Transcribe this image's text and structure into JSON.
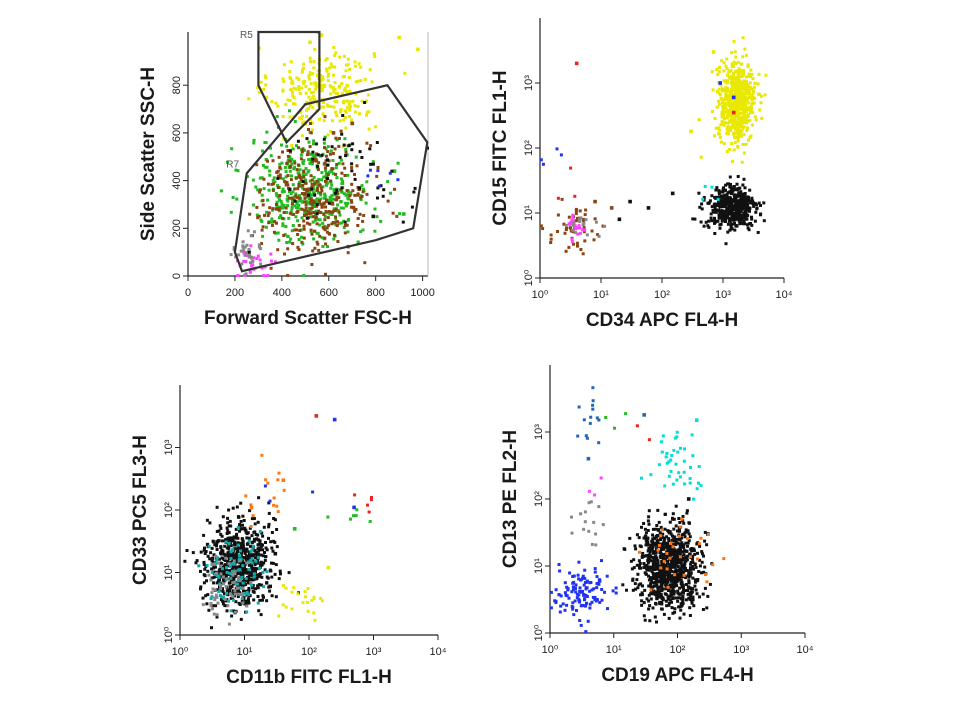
{
  "chart_data": [
    {
      "type": "scatter",
      "panel": "top-left",
      "xlabel": "Forward Scatter FSC-H",
      "ylabel": "Side Scatter SSC-H",
      "xscale": "linear",
      "yscale": "linear",
      "xlim": [
        0,
        1023
      ],
      "ylim": [
        0,
        1023
      ],
      "xticks": [
        "0",
        "200",
        "400",
        "600",
        "800",
        "1000"
      ],
      "yticks": [
        "0",
        "200",
        "400",
        "600",
        "800"
      ],
      "gates": [
        {
          "name": "R5",
          "polygon": [
            [
              300,
              1023
            ],
            [
              300,
              800
            ],
            [
              420,
              560
            ],
            [
              560,
              700
            ],
            [
              560,
              1023
            ]
          ]
        },
        {
          "name": "R7",
          "polygon": [
            [
              200,
              100
            ],
            [
              250,
              430
            ],
            [
              500,
              720
            ],
            [
              850,
              800
            ],
            [
              1020,
              560
            ],
            [
              960,
              200
            ],
            [
              800,
              150
            ],
            [
              230,
              20
            ]
          ]
        }
      ],
      "series": [
        {
          "color": "#e8e800",
          "cluster": {
            "cx": 570,
            "cy": 780,
            "sx": 110,
            "sy": 90,
            "n": 260
          },
          "outliers": [
            [
              520,
              980
            ],
            [
              900,
              1000
            ],
            [
              980,
              950
            ]
          ]
        },
        {
          "color": "#22bb22",
          "cluster": {
            "cx": 520,
            "cy": 360,
            "sx": 130,
            "sy": 110,
            "n": 420
          },
          "outliers": [
            [
              880,
              440
            ],
            [
              920,
              260
            ]
          ]
        },
        {
          "color": "#8b4513",
          "cluster": {
            "cx": 540,
            "cy": 330,
            "sx": 120,
            "sy": 120,
            "n": 320
          },
          "outliers": [
            [
              620,
              600
            ],
            [
              700,
              640
            ]
          ]
        },
        {
          "color": "#111111",
          "cluster": {
            "cx": 650,
            "cy": 420,
            "sx": 150,
            "sy": 130,
            "n": 60
          },
          "outliers": [
            [
              790,
              250
            ],
            [
              260,
              100
            ]
          ]
        },
        {
          "color": "#ff44ff",
          "cluster": {
            "cx": 300,
            "cy": 60,
            "sx": 40,
            "sy": 30,
            "n": 30
          },
          "outliers": []
        },
        {
          "color": "#888888",
          "cluster": {
            "cx": 250,
            "cy": 100,
            "sx": 30,
            "sy": 40,
            "n": 30
          },
          "outliers": []
        },
        {
          "color": "#2233ee",
          "cluster": {
            "cx": 800,
            "cy": 380,
            "sx": 60,
            "sy": 60,
            "n": 6
          },
          "outliers": []
        }
      ]
    },
    {
      "type": "scatter",
      "panel": "top-right",
      "xlabel": "CD34 APC FL4-H",
      "ylabel": "CD15 FITC FL1-H",
      "xscale": "log",
      "yscale": "log",
      "xlim": [
        1,
        10000
      ],
      "ylim": [
        1,
        10000
      ],
      "xticks": [
        "10⁰",
        "10¹",
        "10²",
        "10³",
        "10⁴"
      ],
      "yticks": [
        "10⁰",
        "10¹",
        "10²",
        "10³"
      ],
      "series": [
        {
          "color": "#e8e800",
          "cluster": {
            "cx": 1700,
            "cy": 500,
            "sx": 0.15,
            "sy": 0.3,
            "n": 600
          },
          "outliers": [
            [
              700,
              3000
            ],
            [
              300,
              180
            ]
          ]
        },
        {
          "color": "#111111",
          "cluster": {
            "cx": 1400,
            "cy": 12,
            "sx": 0.2,
            "sy": 0.17,
            "n": 480
          },
          "outliers": [
            [
              60,
              12
            ],
            [
              30,
              15
            ],
            [
              20,
              8
            ],
            [
              150,
              20
            ]
          ]
        },
        {
          "color": "#8b4513",
          "cluster": {
            "cx": 4,
            "cy": 6,
            "sx": 0.25,
            "sy": 0.2,
            "n": 50
          },
          "outliers": [
            [
              15,
              12
            ],
            [
              8,
              15
            ]
          ]
        },
        {
          "color": "#ff44ff",
          "cluster": {
            "cx": 4,
            "cy": 6,
            "sx": 0.08,
            "sy": 0.1,
            "n": 20
          },
          "outliers": []
        },
        {
          "color": "#888888",
          "cluster": {
            "cx": 6,
            "cy": 6,
            "sx": 0.15,
            "sy": 0.12,
            "n": 15
          },
          "outliers": []
        },
        {
          "color": "#2233ee",
          "cluster": {
            "cx": 2,
            "cy": 80,
            "sx": 0.2,
            "sy": 0.15,
            "n": 4
          },
          "outliers": [
            [
              900,
              1000
            ],
            [
              1500,
              600
            ]
          ]
        },
        {
          "color": "#ee2222",
          "cluster": {
            "cx": 3,
            "cy": 25,
            "sx": 0.2,
            "sy": 0.2,
            "n": 3
          },
          "outliers": [
            [
              4,
              2000
            ],
            [
              1500,
              350
            ]
          ]
        },
        {
          "color": "#00dddd",
          "cluster": {
            "cx": 600,
            "cy": 20,
            "sx": 0.1,
            "sy": 0.1,
            "n": 4
          },
          "outliers": []
        }
      ]
    },
    {
      "type": "scatter",
      "panel": "bottom-left",
      "xlabel": "CD11b FITC FL1-H",
      "ylabel": "CD33 PC5 FL3-H",
      "xscale": "log",
      "yscale": "log",
      "xlim": [
        1,
        10000
      ],
      "ylim": [
        1,
        10000
      ],
      "xticks": [
        "10⁰",
        "10¹",
        "10²",
        "10³",
        "10⁴"
      ],
      "yticks": [
        "10⁰",
        "10¹",
        "10²",
        "10³"
      ],
      "series": [
        {
          "color": "#111111",
          "cluster": {
            "cx": 8,
            "cy": 14,
            "sx": 0.25,
            "sy": 0.35,
            "n": 700
          },
          "outliers": [
            [
              25,
              6
            ],
            [
              30,
              20
            ]
          ]
        },
        {
          "color": "#11aaaa",
          "cluster": {
            "cx": 7,
            "cy": 10,
            "sx": 0.2,
            "sy": 0.3,
            "n": 90
          },
          "outliers": []
        },
        {
          "color": "#888888",
          "cluster": {
            "cx": 5,
            "cy": 6,
            "sx": 0.2,
            "sy": 0.25,
            "n": 60
          },
          "outliers": []
        },
        {
          "color": "#ff7711",
          "cluster": {
            "cx": 20,
            "cy": 200,
            "sx": 0.18,
            "sy": 0.25,
            "n": 16
          },
          "outliers": [
            [
              40,
              300
            ]
          ]
        },
        {
          "color": "#e8e800",
          "cluster": {
            "cx": 80,
            "cy": 4,
            "sx": 0.2,
            "sy": 0.15,
            "n": 22
          },
          "outliers": [
            [
              200,
              12
            ]
          ]
        },
        {
          "color": "#22bb22",
          "cluster": {
            "cx": 300,
            "cy": 80,
            "sx": 0.2,
            "sy": 0.12,
            "n": 6
          },
          "outliers": [
            [
              60,
              50
            ]
          ]
        },
        {
          "color": "#ee2222",
          "cluster": {
            "cx": 800,
            "cy": 120,
            "sx": 0.1,
            "sy": 0.08,
            "n": 5
          },
          "outliers": [
            [
              130,
              3200
            ]
          ]
        },
        {
          "color": "#2233ee",
          "cluster": {
            "cx": 50,
            "cy": 200,
            "sx": 0.15,
            "sy": 0.1,
            "n": 3
          },
          "outliers": [
            [
              250,
              2800
            ],
            [
              500,
              110
            ]
          ]
        }
      ]
    },
    {
      "type": "scatter",
      "panel": "bottom-right",
      "xlabel": "CD19 APC FL4-H",
      "ylabel": "CD13 PE FL2-H",
      "xscale": "log",
      "yscale": "log",
      "xlim": [
        1,
        10000
      ],
      "ylim": [
        1,
        10000
      ],
      "xticks": [
        "10⁰",
        "10¹",
        "10²",
        "10³",
        "10⁴"
      ],
      "yticks": [
        "10⁰",
        "10¹",
        "10²",
        "10³"
      ],
      "series": [
        {
          "color": "#111111",
          "cluster": {
            "cx": 75,
            "cy": 10,
            "sx": 0.25,
            "sy": 0.3,
            "n": 900
          },
          "outliers": [
            [
              300,
              30
            ],
            [
              150,
              100
            ]
          ]
        },
        {
          "color": "#2233ee",
          "cluster": {
            "cx": 3,
            "cy": 4,
            "sx": 0.22,
            "sy": 0.18,
            "n": 120
          },
          "outliers": [
            [
              6,
              6
            ]
          ]
        },
        {
          "color": "#00dddd",
          "cluster": {
            "cx": 100,
            "cy": 300,
            "sx": 0.2,
            "sy": 0.2,
            "n": 40
          },
          "outliers": [
            [
              200,
              1500
            ]
          ]
        },
        {
          "color": "#ff7711",
          "cluster": {
            "cx": 90,
            "cy": 12,
            "sx": 0.25,
            "sy": 0.3,
            "n": 30
          },
          "outliers": []
        },
        {
          "color": "#888888",
          "cluster": {
            "cx": 4,
            "cy": 40,
            "sx": 0.15,
            "sy": 0.2,
            "n": 15
          },
          "outliers": []
        },
        {
          "color": "#2266bb",
          "cluster": {
            "cx": 4,
            "cy": 2000,
            "sx": 0.15,
            "sy": 0.25,
            "n": 14
          },
          "outliers": [
            [
              30,
              1800
            ],
            [
              4,
              400
            ]
          ]
        },
        {
          "color": "#ff44ff",
          "cluster": {
            "cx": 5,
            "cy": 150,
            "sx": 0.05,
            "sy": 0.1,
            "n": 3
          },
          "outliers": []
        },
        {
          "color": "#22bb22",
          "cluster": {
            "cx": 10,
            "cy": 1500,
            "sx": 0.15,
            "sy": 0.15,
            "n": 3
          },
          "outliers": []
        },
        {
          "color": "#ee2222",
          "cluster": {
            "cx": 30,
            "cy": 1200,
            "sx": 0.1,
            "sy": 0.1,
            "n": 2
          },
          "outliers": []
        }
      ]
    }
  ]
}
